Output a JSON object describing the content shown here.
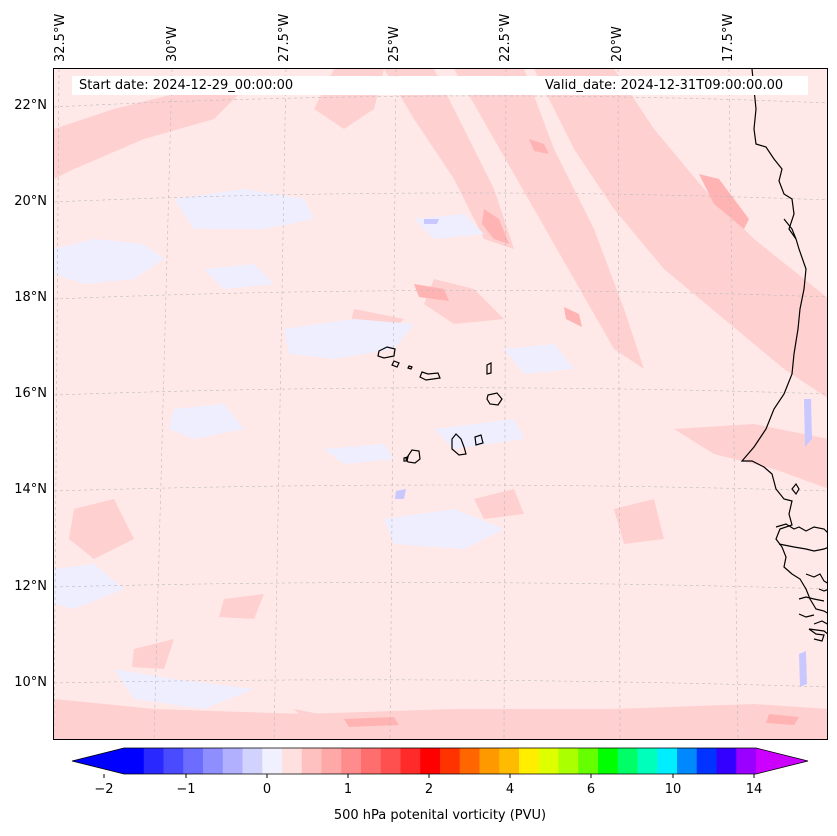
{
  "map": {
    "start_date_text": "Start date: 2024-12-29_00:00:00",
    "valid_date_text": "Valid_date: 2024-12-31T09:00:00.00",
    "longitude_labels": [
      "32.5°W",
      "30°W",
      "27.5°W",
      "25°W",
      "22.5°W",
      "20°W",
      "17.5°W"
    ],
    "latitude_labels": [
      "22°N",
      "20°N",
      "18°N",
      "16°N",
      "14°N",
      "12°N",
      "10°N"
    ],
    "colors": {
      "background_field": "#ffe8e8",
      "positive_weak": "#ffd0d0",
      "positive_medium": "#ffb3b3",
      "negative_weak": "#eeeeff",
      "negative_medium": "#c8c8ff",
      "coastline": "#000000",
      "gridline": "#bbbbbb"
    }
  },
  "colorbar": {
    "label": "500 hPa potenital vorticity (PVU)",
    "ticks": [
      "−2",
      "−1",
      "0",
      "1",
      "2",
      "4",
      "6",
      "10",
      "14"
    ],
    "colors": [
      "#0000ff",
      "#2828ff",
      "#4a4aff",
      "#6c6cff",
      "#8e8eff",
      "#b0b0ff",
      "#d2d2ff",
      "#f0f0ff",
      "#ffe0e0",
      "#ffc0c0",
      "#ffa8a8",
      "#ff8c8c",
      "#ff6e6e",
      "#ff5050",
      "#ff2a2a",
      "#ff0000",
      "#ff3300",
      "#ff6600",
      "#ff9900",
      "#ffbb00",
      "#ffee00",
      "#ddff00",
      "#aaff00",
      "#66ff00",
      "#00ff00",
      "#00ff66",
      "#00ffbb",
      "#00eeff",
      "#0088ff",
      "#0033ff",
      "#3300ff",
      "#9900ff"
    ],
    "under_color": "#0000ff",
    "over_color": "#cc00ff"
  }
}
